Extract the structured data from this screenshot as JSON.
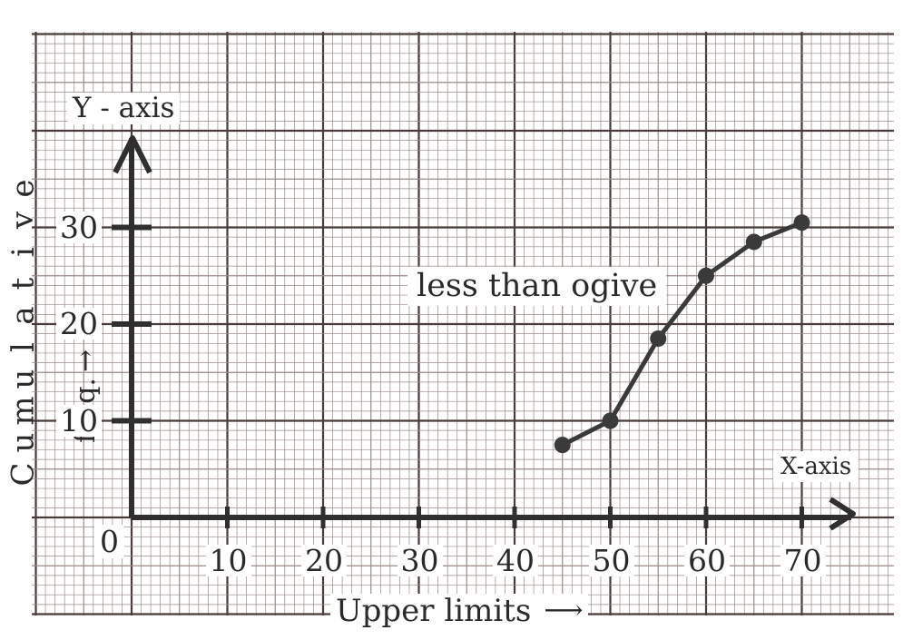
{
  "chart_data": {
    "type": "line",
    "title": "less than ogive",
    "xlabel": "Upper limits",
    "ylabel": "Cumulative freq.",
    "x_axis_tag": "X-axis",
    "y_axis_tag": "Y - axis",
    "origin_label": "0",
    "x_ticks": [
      10,
      20,
      30,
      40,
      50,
      60,
      70
    ],
    "y_ticks": [
      10,
      20,
      30
    ],
    "xlim": [
      0,
      70
    ],
    "ylim": [
      0,
      30
    ],
    "grid": true,
    "series": [
      {
        "x": [
          45,
          50,
          55,
          60,
          65,
          70
        ],
        "y": [
          7.5,
          10,
          18.5,
          25,
          28.5,
          30.5
        ]
      }
    ]
  },
  "colors": {
    "grid_minor": "#9a8a86",
    "grid_major": "#4a3a38",
    "axis": "#2f2f2f",
    "series": "#3a3a3a",
    "paper": "#ffffff"
  }
}
